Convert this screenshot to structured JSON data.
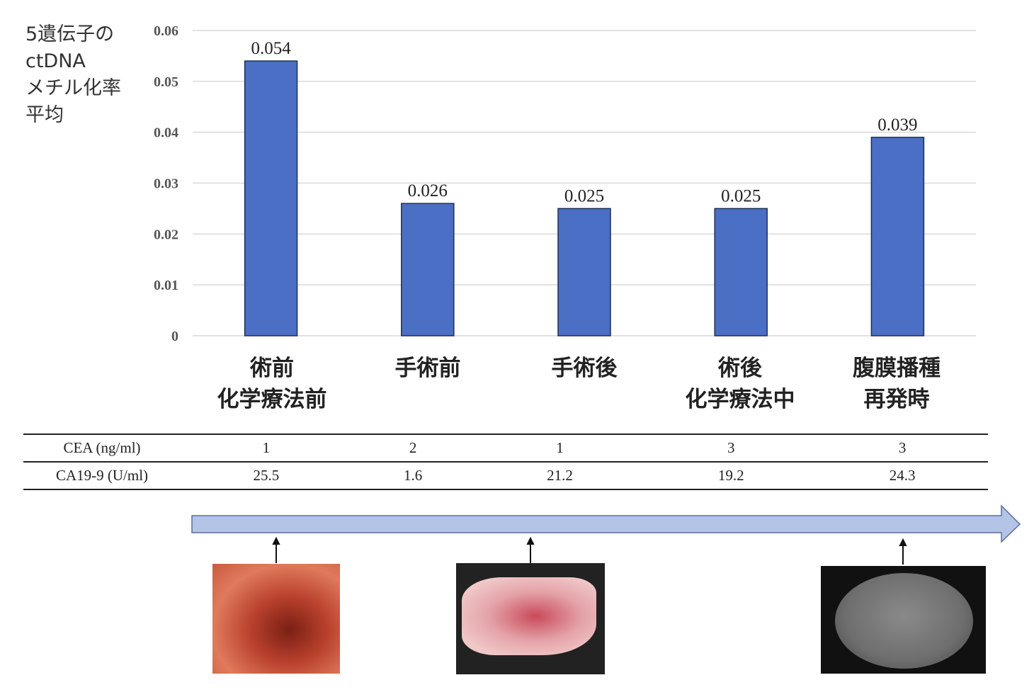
{
  "chart_data": {
    "type": "bar",
    "ylabel": "5遺伝子の\nctDNA\nメチル化率\n平均",
    "categories": [
      "術前\n化学療法前",
      "手術前",
      "手術後",
      "術後\n化学療法中",
      "腹膜播種\n再発時"
    ],
    "values": [
      0.054,
      0.026,
      0.025,
      0.025,
      0.039
    ],
    "data_labels": [
      "0.054",
      "0.026",
      "0.025",
      "0.025",
      "0.039"
    ],
    "ylim": [
      0,
      0.06
    ],
    "yticks": [
      "0",
      "0.01",
      "0.02",
      "0.03",
      "0.04",
      "0.05",
      "0.06"
    ],
    "grid": true,
    "bar_color": "#4a6fc4"
  },
  "table": {
    "rows": [
      {
        "label": "CEA (ng/ml)",
        "values": [
          "1",
          "2",
          "1",
          "3",
          "3"
        ]
      },
      {
        "label": "CA19-9 (U/ml)",
        "values": [
          "25.5",
          "1.6",
          "21.2",
          "19.2",
          "24.3"
        ]
      }
    ]
  },
  "timeline": {
    "arrow_color": "#b4c4e6"
  },
  "images": [
    "endoscopy-image",
    "resected-specimen-image",
    "ct-scan-image"
  ]
}
